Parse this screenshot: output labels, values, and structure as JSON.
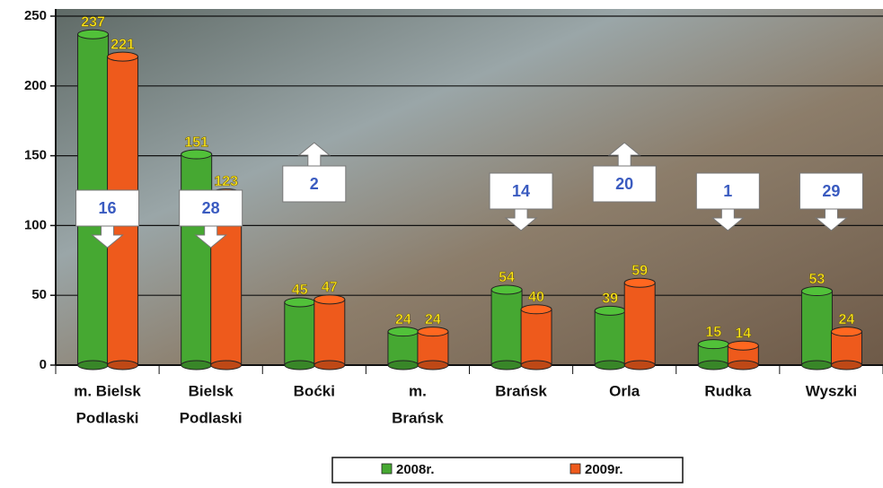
{
  "chart_data": {
    "type": "bar",
    "categories": [
      [
        "m. Bielsk",
        "Podlaski"
      ],
      [
        "Bielsk",
        "Podlaski"
      ],
      [
        "Boćki"
      ],
      [
        "m.",
        "Brańsk"
      ],
      [
        "Brańsk"
      ],
      [
        "Orla"
      ],
      [
        "Rudka"
      ],
      [
        "Wyszki"
      ]
    ],
    "series": [
      {
        "name": "2008r.",
        "color": "#46a832",
        "values": [
          237,
          151,
          45,
          24,
          54,
          39,
          15,
          53
        ]
      },
      {
        "name": "2009r.",
        "color": "#ee5a1c",
        "values": [
          221,
          123,
          47,
          24,
          40,
          59,
          14,
          24
        ]
      }
    ],
    "changes": [
      {
        "value": 16,
        "direction": "down"
      },
      {
        "value": 28,
        "direction": "down"
      },
      {
        "value": 2,
        "direction": "up"
      },
      {
        "value": null,
        "direction": null
      },
      {
        "value": 14,
        "direction": "down"
      },
      {
        "value": 20,
        "direction": "up"
      },
      {
        "value": 1,
        "direction": "down"
      },
      {
        "value": 29,
        "direction": "down"
      }
    ],
    "ylim": [
      0,
      250
    ],
    "yticks": [
      0,
      50,
      100,
      150,
      200,
      250
    ],
    "grid": true
  }
}
